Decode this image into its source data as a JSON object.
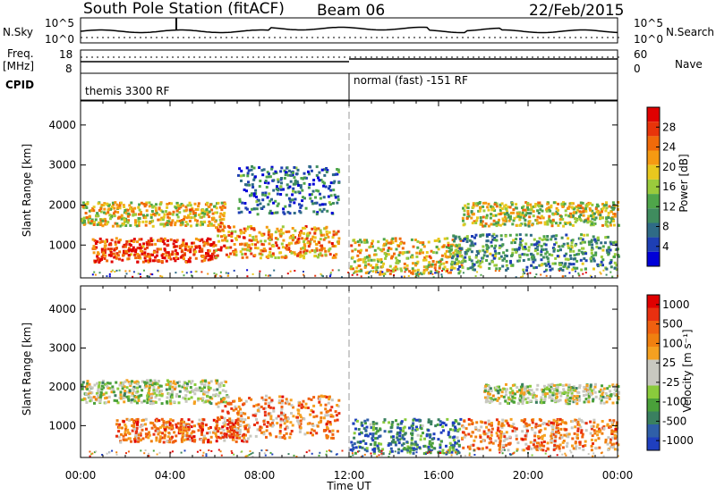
{
  "header": {
    "station": "South Pole Station (fitACF)",
    "beam": "Beam 06",
    "date": "22/Feb/2015"
  },
  "strip": {
    "nsky_label": "N.Sky",
    "nsky_ticks": [
      "10^5",
      "10^0"
    ],
    "nsearch_label": "N.Search",
    "nsearch_ticks": [
      "10^5",
      "10^0"
    ],
    "freq_label_1": "Freq.",
    "freq_label_2": "[MHz]",
    "freq_ticks": [
      "18",
      "8"
    ],
    "nave_label": "Nave",
    "nave_ticks": [
      "60",
      "0"
    ],
    "cpid_label": "CPID",
    "cpid_left": "themis 3300 RF",
    "cpid_right": "normal (fast) -151 RF"
  },
  "colors": {
    "power_scale": [
      "#0000d8",
      "#1e3fb4",
      "#2f6b86",
      "#3f8c5e",
      "#4fa64a",
      "#9acb3c",
      "#e8c81e",
      "#f59a12",
      "#f06a0a",
      "#e8340a",
      "#e00000"
    ],
    "velocity_scale": [
      "#1f3fbf",
      "#2f5fa8",
      "#3a8060",
      "#4aa03a",
      "#8acb3c",
      "#c8c8c0",
      "#c8c8c0",
      "#f5a020",
      "#f08010",
      "#f06010",
      "#e83010",
      "#e00000"
    ]
  },
  "chart_data": [
    {
      "type": "heatmap",
      "name": "power",
      "ylabel": "Slant Range [km]",
      "yticks": [
        1000,
        2000,
        3000,
        4000
      ],
      "ylim": [
        180,
        4600
      ],
      "xticks": [
        "00:00",
        "04:00",
        "08:00",
        "12:00",
        "16:00",
        "20:00",
        "00:00"
      ],
      "colorbar_label": "Power [dB]",
      "colorbar_ticks": [
        "4",
        "8",
        "12",
        "16",
        "20",
        "24",
        "28"
      ],
      "bands": [
        {
          "t0": 0.0,
          "t1": 6.5,
          "r0": 1500,
          "r1": 2100,
          "level": 0.6
        },
        {
          "t0": 0.5,
          "t1": 6.0,
          "r0": 600,
          "r1": 1200,
          "level": 0.85
        },
        {
          "t0": 6.0,
          "t1": 11.5,
          "r0": 700,
          "r1": 1500,
          "level": 0.7
        },
        {
          "t0": 7.0,
          "t1": 11.5,
          "r0": 1800,
          "r1": 3000,
          "level": 0.25
        },
        {
          "t0": 12.0,
          "t1": 17.0,
          "r0": 300,
          "r1": 1200,
          "level": 0.6
        },
        {
          "t0": 16.5,
          "t1": 24.0,
          "r0": 400,
          "r1": 1300,
          "level": 0.35
        },
        {
          "t0": 17.0,
          "t1": 24.0,
          "r0": 1500,
          "r1": 2100,
          "level": 0.55
        }
      ]
    },
    {
      "type": "heatmap",
      "name": "velocity",
      "ylabel": "Slant Range [km]",
      "yticks": [
        1000,
        2000,
        3000,
        4000
      ],
      "ylim": [
        180,
        4600
      ],
      "xticks": [
        "00:00",
        "04:00",
        "08:00",
        "12:00",
        "16:00",
        "20:00",
        "00:00"
      ],
      "xlabel": "Time UT",
      "colorbar_label": "Velocity [m s⁻¹]",
      "colorbar_ticks": [
        "1000",
        "500",
        "100",
        "25",
        "-25",
        "-100",
        "-500",
        "-1000"
      ],
      "bands": [
        {
          "t0": 0.0,
          "t1": 6.5,
          "r0": 1600,
          "r1": 2200,
          "level": 0.45
        },
        {
          "t0": 1.5,
          "t1": 7.5,
          "r0": 600,
          "r1": 1200,
          "level": 0.75
        },
        {
          "t0": 6.0,
          "t1": 11.5,
          "r0": 700,
          "r1": 1800,
          "level": 0.7
        },
        {
          "t0": 12.0,
          "t1": 17.0,
          "r0": 300,
          "r1": 1200,
          "level": 0.2
        },
        {
          "t0": 17.0,
          "t1": 24.0,
          "r0": 400,
          "r1": 1200,
          "level": 0.7
        },
        {
          "t0": 18.0,
          "t1": 24.0,
          "r0": 1600,
          "r1": 2100,
          "level": 0.45
        }
      ]
    }
  ]
}
